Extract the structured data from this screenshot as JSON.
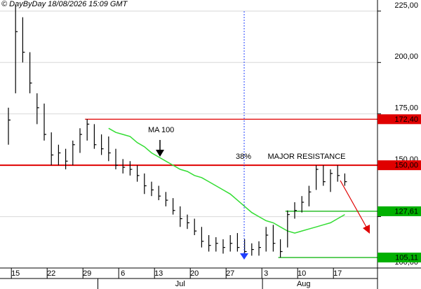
{
  "chart_data": {
    "type": "ohlc",
    "header": "© DayByDay 18/08/2026  15:09 GMT",
    "categories": [
      null,
      "15",
      null,
      null,
      null,
      null,
      "22",
      null,
      null,
      null,
      null,
      "29",
      null,
      null,
      null,
      null,
      "6",
      null,
      null,
      null,
      null,
      "13",
      null,
      null,
      null,
      null,
      "20",
      null,
      null,
      null,
      null,
      "27",
      null,
      null,
      null,
      null,
      "3",
      null,
      null,
      null,
      null,
      "10",
      null,
      null,
      null,
      null,
      "17",
      null
    ],
    "months": [
      null,
      null,
      null,
      null,
      null,
      null,
      null,
      null,
      null,
      null,
      null,
      null,
      null,
      "Jul",
      null,
      null,
      null,
      null,
      null,
      null,
      null,
      null,
      null,
      null,
      null,
      null,
      null,
      null,
      null,
      null,
      null,
      null,
      null,
      null,
      null,
      null,
      "Aug",
      null,
      null,
      null,
      null,
      null,
      null,
      null,
      null,
      null,
      null,
      null
    ],
    "high": [
      178,
      228,
      222,
      205,
      185,
      180,
      166,
      160,
      158,
      162,
      168,
      172.4,
      170,
      165,
      164,
      158,
      153,
      152,
      150,
      146,
      142,
      140,
      137,
      134,
      130,
      126,
      124,
      120,
      116,
      115,
      114,
      116,
      117,
      114,
      112,
      113,
      120,
      121,
      114,
      128,
      132,
      135,
      140,
      150,
      150,
      148,
      150,
      146
    ],
    "low": [
      160,
      185,
      200,
      185,
      170,
      162,
      150,
      150,
      148,
      150,
      156,
      162,
      158,
      155,
      152,
      148,
      146,
      145,
      142,
      136,
      135,
      133,
      130,
      126,
      120,
      119,
      116,
      110,
      108,
      108,
      107,
      108,
      108,
      107,
      106,
      106,
      108,
      108,
      105.11,
      110,
      124,
      127,
      130,
      138,
      140,
      137,
      142,
      140
    ],
    "close": [
      172,
      215,
      205,
      190,
      178,
      165,
      155,
      156,
      152,
      160,
      165,
      170,
      160,
      158,
      156,
      150,
      149,
      148,
      145,
      140,
      138,
      135,
      133,
      128,
      124,
      122,
      118,
      113,
      111,
      112,
      110,
      112,
      110,
      108,
      109,
      110,
      116,
      112,
      108,
      126,
      128,
      132,
      137,
      148,
      142,
      146,
      145,
      142
    ],
    "color": "#000000",
    "ma": {
      "name": "MA 100",
      "color": "#33dd33",
      "values": [
        null,
        null,
        null,
        null,
        null,
        null,
        null,
        null,
        null,
        null,
        null,
        null,
        null,
        null,
        168,
        166,
        165,
        164,
        161,
        159,
        156,
        154,
        152,
        150,
        148,
        147,
        145,
        144,
        142,
        140,
        138,
        136,
        133,
        130,
        127,
        125,
        123,
        122,
        120,
        118,
        117,
        118,
        119,
        120,
        121,
        122,
        124,
        126
      ]
    },
    "levels": [
      {
        "value": 172.4,
        "label": "172,40",
        "color": "#e00000",
        "from": 11
      },
      {
        "value": 150,
        "label": "150,00",
        "color": "#e00000",
        "from": 0
      },
      {
        "value": 127.61,
        "label": "127,61",
        "color": "#00b000",
        "from": 39
      },
      {
        "value": 105.11,
        "label": "105,11",
        "color": "#00b000",
        "from": 38
      }
    ],
    "annotations": [
      "38%",
      "MAJOR RESISTANCE"
    ],
    "ylim": [
      100,
      230.4
    ],
    "yticks": [
      {
        "value": 100,
        "label": "100,00"
      },
      {
        "value": 125,
        "label": "125,00"
      },
      {
        "value": 150,
        "label": "150,00"
      },
      {
        "value": 175,
        "label": "175,00"
      },
      {
        "value": 200,
        "label": "200,00"
      },
      {
        "value": 225,
        "label": "225,00"
      }
    ],
    "grid": true
  }
}
